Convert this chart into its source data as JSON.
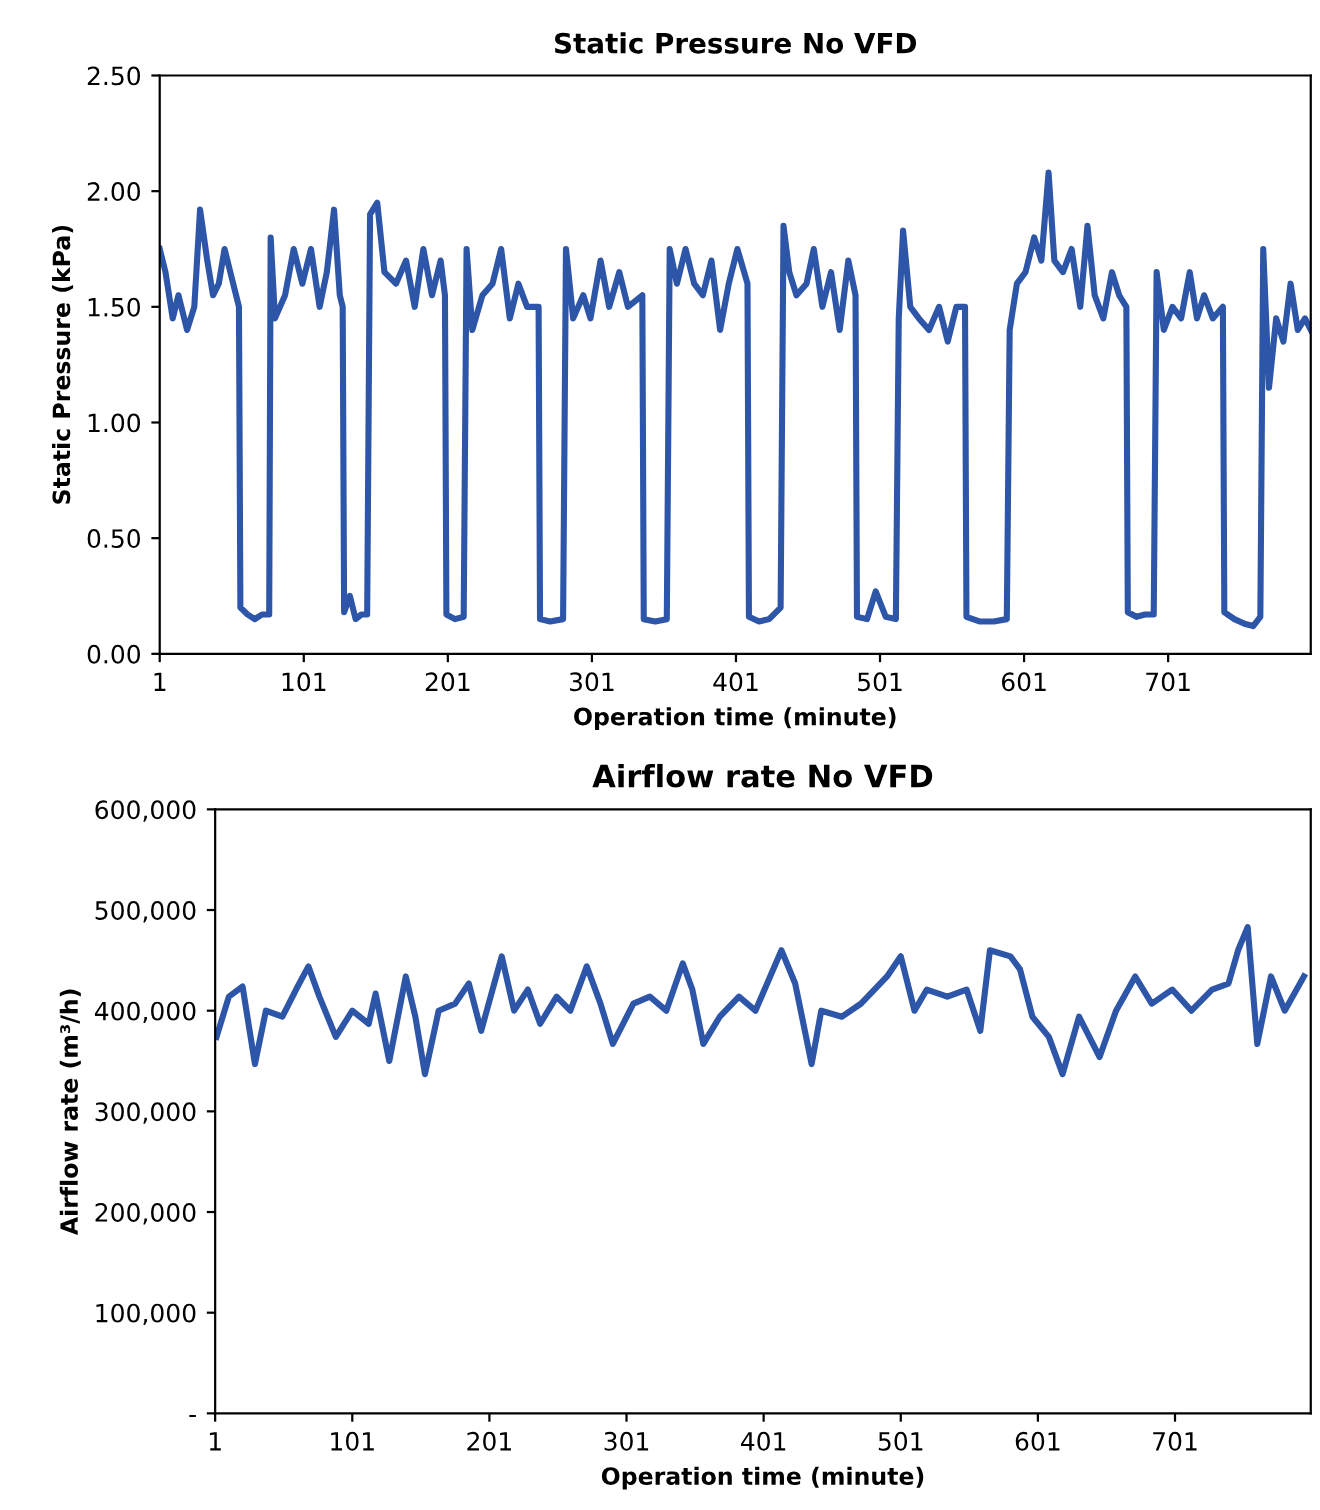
{
  "chart_data": [
    {
      "type": "line",
      "title": "Static Pressure No VFD",
      "xlabel": "Operation time (minute)",
      "ylabel": "Static Pressure (kPa)",
      "xlim": [
        1,
        800
      ],
      "ylim": [
        0,
        2.5
      ],
      "xticks": [
        1,
        101,
        201,
        301,
        401,
        501,
        601,
        701
      ],
      "yticks": [
        {
          "value": 0,
          "label": "0.00"
        },
        {
          "value": 0.5,
          "label": "0.50"
        },
        {
          "value": 1,
          "label": "1.00"
        },
        {
          "value": 1.5,
          "label": "1.50"
        },
        {
          "value": 2,
          "label": "2.00"
        },
        {
          "value": 2.5,
          "label": "2.50"
        }
      ],
      "grid": false,
      "legend": false,
      "series": [
        {
          "color": "#2e56a8",
          "x": [
            1,
            5,
            10,
            14,
            20,
            25,
            29,
            34,
            38,
            42,
            46,
            50,
            54,
            56,
            57,
            62,
            67,
            72,
            77,
            78,
            81,
            88,
            94,
            100,
            106,
            112,
            117,
            122,
            126,
            128,
            129,
            133,
            137,
            141,
            145,
            147,
            152,
            157,
            165,
            172,
            178,
            184,
            190,
            196,
            199,
            200,
            206,
            212,
            214,
            218,
            225,
            232,
            238,
            244,
            250,
            256,
            264,
            265,
            272,
            281,
            283,
            288,
            295,
            300,
            307,
            313,
            320,
            326,
            336,
            337,
            345,
            353,
            355,
            360,
            366,
            372,
            378,
            384,
            390,
            396,
            402,
            409,
            410,
            417,
            424,
            432,
            434,
            438,
            443,
            450,
            455,
            461,
            467,
            473,
            479,
            484,
            485,
            492,
            498,
            505,
            512,
            514,
            517,
            522,
            528,
            535,
            542,
            548,
            554,
            560,
            561,
            570,
            580,
            589,
            591,
            596,
            602,
            608,
            613,
            618,
            622,
            628,
            634,
            640,
            645,
            650,
            656,
            662,
            667,
            672,
            673,
            679,
            685,
            691,
            693,
            698,
            704,
            710,
            716,
            721,
            726,
            732,
            739,
            740,
            747,
            754,
            760,
            765,
            767,
            771,
            776,
            781,
            786,
            791,
            796,
            800
          ],
          "values": [
            1.75,
            1.65,
            1.45,
            1.55,
            1.4,
            1.5,
            1.92,
            1.7,
            1.55,
            1.6,
            1.75,
            1.65,
            1.55,
            1.5,
            0.2,
            0.17,
            0.15,
            0.17,
            0.17,
            1.8,
            1.45,
            1.55,
            1.75,
            1.6,
            1.75,
            1.5,
            1.65,
            1.92,
            1.55,
            1.5,
            0.18,
            0.25,
            0.15,
            0.17,
            0.17,
            1.9,
            1.95,
            1.65,
            1.6,
            1.7,
            1.5,
            1.75,
            1.55,
            1.7,
            1.55,
            0.17,
            0.15,
            0.16,
            1.75,
            1.4,
            1.55,
            1.6,
            1.75,
            1.45,
            1.6,
            1.5,
            1.5,
            0.15,
            0.14,
            0.15,
            1.75,
            1.45,
            1.55,
            1.45,
            1.7,
            1.5,
            1.65,
            1.5,
            1.55,
            0.15,
            0.14,
            0.15,
            1.75,
            1.6,
            1.75,
            1.6,
            1.55,
            1.7,
            1.4,
            1.6,
            1.75,
            1.6,
            0.16,
            0.14,
            0.15,
            0.2,
            1.85,
            1.65,
            1.55,
            1.6,
            1.75,
            1.5,
            1.65,
            1.4,
            1.7,
            1.55,
            0.16,
            0.15,
            0.27,
            0.16,
            0.15,
            1.45,
            1.83,
            1.5,
            1.45,
            1.4,
            1.5,
            1.35,
            1.5,
            1.5,
            0.16,
            0.14,
            0.14,
            0.15,
            1.4,
            1.6,
            1.65,
            1.8,
            1.7,
            2.08,
            1.7,
            1.65,
            1.75,
            1.5,
            1.85,
            1.55,
            1.45,
            1.65,
            1.55,
            1.5,
            0.18,
            0.16,
            0.17,
            0.17,
            1.65,
            1.4,
            1.5,
            1.45,
            1.65,
            1.45,
            1.55,
            1.45,
            1.5,
            0.18,
            0.15,
            0.13,
            0.12,
            0.16,
            1.75,
            1.15,
            1.45,
            1.35,
            1.6,
            1.4,
            1.45,
            1.4
          ]
        }
      ]
    },
    {
      "type": "line",
      "title": "Airflow rate No VFD",
      "xlabel": "Operation time (minute)",
      "ylabel": "Airflow rate (m³/h)",
      "xlim": [
        1,
        800
      ],
      "ylim": [
        0,
        600000
      ],
      "xticks": [
        1,
        101,
        201,
        301,
        401,
        501,
        601,
        701
      ],
      "yticks": [
        {
          "value": 0,
          "label": "-"
        },
        {
          "value": 100000,
          "label": "100,000"
        },
        {
          "value": 200000,
          "label": "200,000"
        },
        {
          "value": 300000,
          "label": "300,000"
        },
        {
          "value": 400000,
          "label": "400,000"
        },
        {
          "value": 500000,
          "label": "500,000"
        },
        {
          "value": 600000,
          "label": "600,000"
        }
      ],
      "grid": false,
      "legend": false,
      "series": [
        {
          "color": "#2e56a8",
          "x": [
            2,
            11,
            21,
            30,
            38,
            50,
            60,
            69,
            77,
            89,
            101,
            113,
            118,
            128,
            140,
            147,
            154,
            164,
            176,
            186,
            195,
            210,
            219,
            229,
            238,
            250,
            260,
            272,
            282,
            291,
            306,
            318,
            330,
            342,
            349,
            357,
            369,
            383,
            395,
            414,
            424,
            436,
            443,
            458,
            472,
            491,
            501,
            511,
            520,
            535,
            549,
            559,
            566,
            581,
            588,
            597,
            609,
            619,
            631,
            646,
            658,
            672,
            684,
            699,
            713,
            728,
            740,
            747,
            754,
            761,
            771,
            781,
            795
          ],
          "values": [
            374000,
            414000,
            424000,
            347000,
            400000,
            394000,
            421000,
            444000,
            414000,
            374000,
            400000,
            387000,
            417000,
            350000,
            434000,
            394000,
            337000,
            400000,
            407000,
            427000,
            380000,
            454000,
            400000,
            421000,
            387000,
            414000,
            400000,
            444000,
            407000,
            367000,
            407000,
            414000,
            400000,
            447000,
            421000,
            367000,
            394000,
            414000,
            400000,
            460000,
            427000,
            347000,
            400000,
            394000,
            407000,
            434000,
            454000,
            400000,
            421000,
            414000,
            421000,
            380000,
            460000,
            454000,
            441000,
            394000,
            374000,
            337000,
            394000,
            354000,
            400000,
            434000,
            407000,
            421000,
            400000,
            421000,
            427000,
            460000,
            483000,
            367000,
            434000,
            400000,
            434000
          ]
        }
      ]
    }
  ]
}
